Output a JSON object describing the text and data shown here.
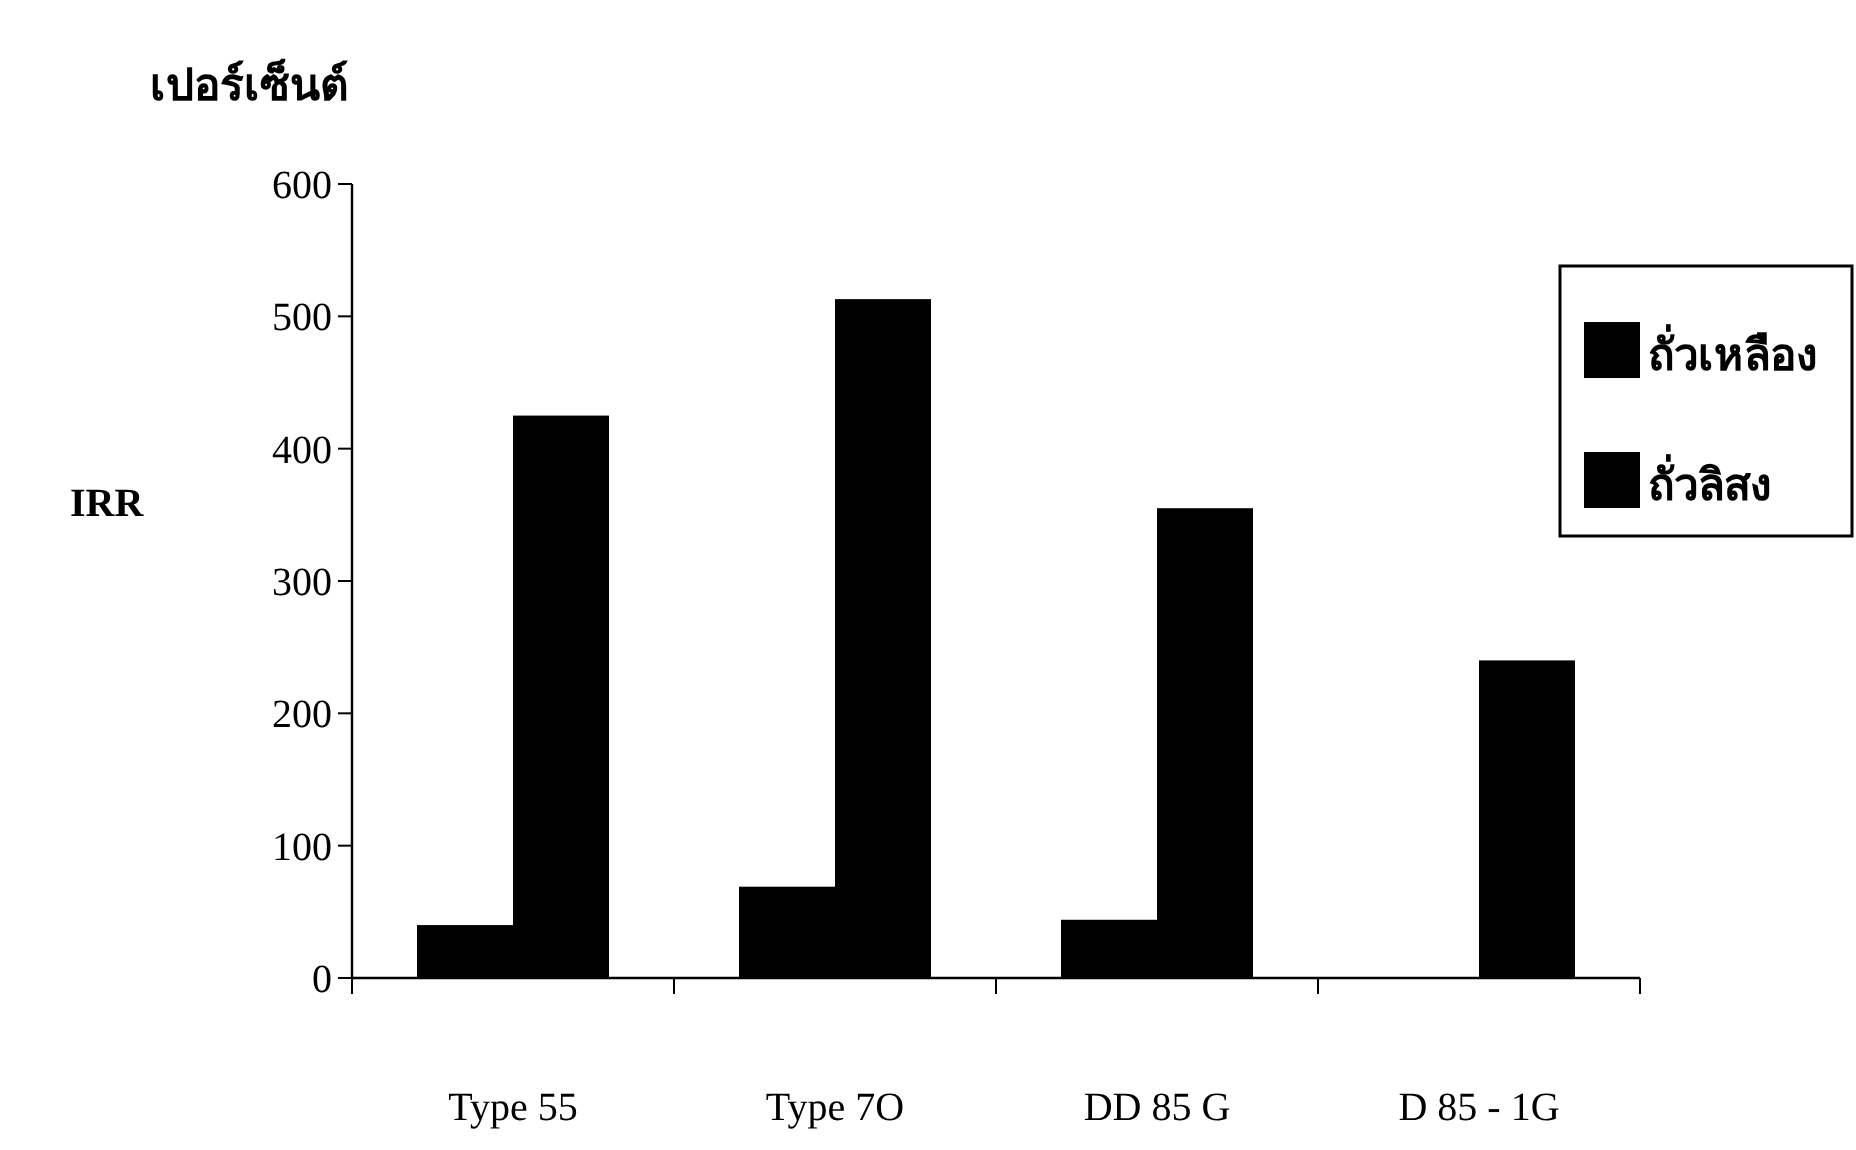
{
  "chart_data": {
    "type": "bar",
    "title": "เปอร์เซ็นต์",
    "ylabel": "IRR",
    "categories": [
      "Type 55",
      "Type 7O",
      "DD 85 G",
      "D 85 - 1G"
    ],
    "series": [
      {
        "name": "ถั่วเหลือง",
        "color": "#000000",
        "values": [
          40,
          69,
          44,
          null
        ]
      },
      {
        "name": "ถั่วลิสง",
        "color": "#000000",
        "values": [
          425,
          513,
          355,
          240
        ]
      }
    ],
    "ylim": [
      0,
      600
    ],
    "yticks": [
      0,
      100,
      200,
      300,
      400,
      500,
      600
    ],
    "legend": "right",
    "grid": false
  }
}
